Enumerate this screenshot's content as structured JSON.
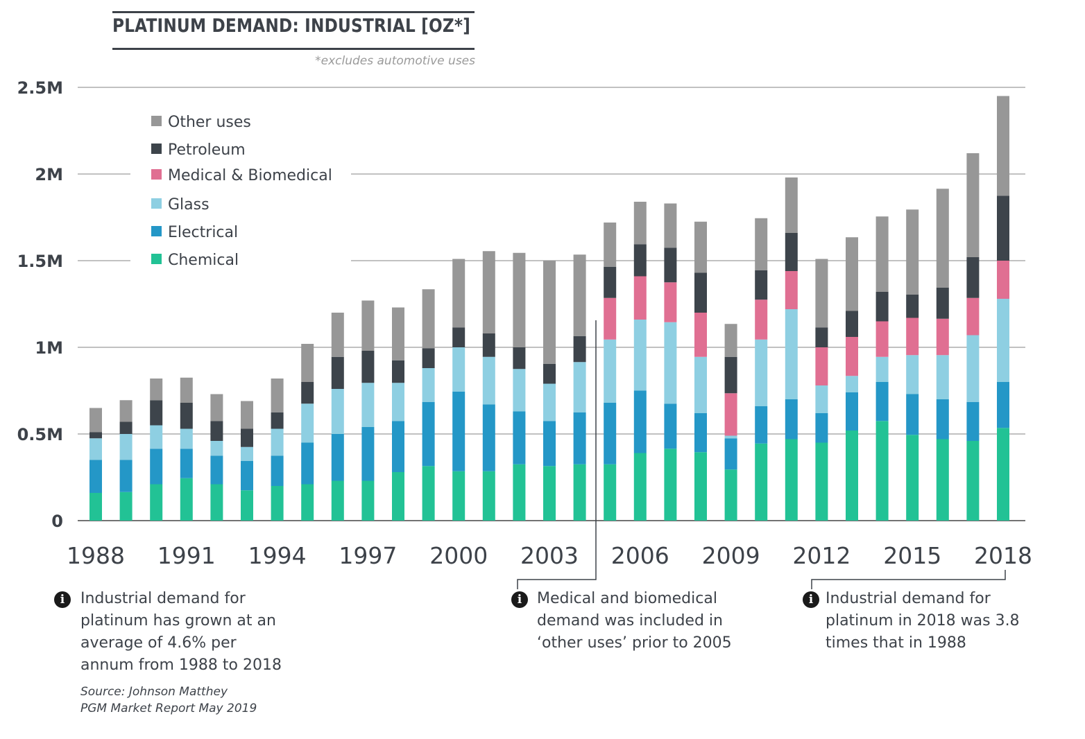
{
  "header": {
    "title": "PLATINUM DEMAND: INDUSTRIAL [OZ*]",
    "subtitle": "*excludes automotive uses"
  },
  "chart_data": {
    "type": "bar",
    "stacked": true,
    "title": "PLATINUM DEMAND: INDUSTRIAL [OZ*]",
    "subtitle": "*excludes automotive uses",
    "xlabel": "",
    "ylabel": "",
    "ylim": [
      0,
      2500000
    ],
    "yticks": [
      0,
      500000,
      1000000,
      1500000,
      2000000,
      2500000
    ],
    "ytick_labels": [
      "0",
      "0.5M",
      "1M",
      "1.5M",
      "2M",
      "2.5M"
    ],
    "xtick_labels": [
      "1988",
      "1991",
      "1994",
      "1997",
      "2000",
      "2003",
      "2006",
      "2009",
      "2012",
      "2015",
      "2018"
    ],
    "grid": true,
    "legend_position": "top-left",
    "categories": [
      "1988",
      "1989",
      "1990",
      "1991",
      "1992",
      "1993",
      "1994",
      "1995",
      "1996",
      "1997",
      "1998",
      "1999",
      "2000",
      "2001",
      "2002",
      "2003",
      "2004",
      "2005",
      "2006",
      "2007",
      "2008",
      "2009",
      "2010",
      "2011",
      "2012",
      "2013",
      "2014",
      "2015",
      "2016",
      "2017",
      "2018"
    ],
    "series": [
      {
        "name": "Chemical",
        "color": "#22c295",
        "values": [
          160000,
          165000,
          210000,
          245000,
          210000,
          175000,
          200000,
          210000,
          230000,
          230000,
          280000,
          315000,
          285000,
          285000,
          325000,
          315000,
          325000,
          325000,
          390000,
          415000,
          395000,
          295000,
          445000,
          470000,
          450000,
          520000,
          575000,
          495000,
          470000,
          460000,
          535000
        ]
      },
      {
        "name": "Electrical",
        "color": "#2497c7",
        "values": [
          190000,
          185000,
          205000,
          170000,
          165000,
          170000,
          175000,
          240000,
          270000,
          310000,
          295000,
          370000,
          460000,
          385000,
          305000,
          260000,
          300000,
          355000,
          360000,
          260000,
          225000,
          180000,
          215000,
          230000,
          170000,
          220000,
          225000,
          235000,
          230000,
          225000,
          265000
        ]
      },
      {
        "name": "Glass",
        "color": "#8ecfe2",
        "values": [
          125000,
          150000,
          135000,
          115000,
          85000,
          80000,
          155000,
          225000,
          260000,
          255000,
          220000,
          195000,
          255000,
          275000,
          245000,
          215000,
          290000,
          365000,
          410000,
          470000,
          325000,
          15000,
          385000,
          520000,
          160000,
          95000,
          145000,
          225000,
          255000,
          385000,
          480000
        ]
      },
      {
        "name": "Medical & Biomedical",
        "color": "#e06f92",
        "values": [
          0,
          0,
          0,
          0,
          0,
          0,
          0,
          0,
          0,
          0,
          0,
          0,
          0,
          0,
          0,
          0,
          0,
          240000,
          250000,
          230000,
          255000,
          245000,
          230000,
          220000,
          220000,
          225000,
          205000,
          215000,
          210000,
          215000,
          220000
        ]
      },
      {
        "name": "Petroleum",
        "color": "#3d444b",
        "values": [
          35000,
          70000,
          145000,
          150000,
          115000,
          105000,
          95000,
          125000,
          185000,
          185000,
          130000,
          115000,
          115000,
          135000,
          125000,
          115000,
          150000,
          180000,
          185000,
          200000,
          230000,
          210000,
          170000,
          220000,
          115000,
          150000,
          170000,
          135000,
          180000,
          235000,
          375000
        ]
      },
      {
        "name": "Other uses",
        "color": "#979797",
        "values": [
          140000,
          125000,
          125000,
          145000,
          155000,
          160000,
          195000,
          220000,
          255000,
          290000,
          305000,
          340000,
          395000,
          475000,
          545000,
          595000,
          470000,
          255000,
          245000,
          255000,
          295000,
          190000,
          300000,
          320000,
          395000,
          425000,
          435000,
          490000,
          570000,
          600000,
          575000
        ]
      }
    ]
  },
  "legend": [
    {
      "label": "Other uses",
      "color": "#979797"
    },
    {
      "label": "Petroleum",
      "color": "#3d444b"
    },
    {
      "label": "Medical & Biomedical",
      "color": "#e06f92"
    },
    {
      "label": "Glass",
      "color": "#8ecfe2"
    },
    {
      "label": "Electrical",
      "color": "#2497c7"
    },
    {
      "label": "Chemical",
      "color": "#22c295"
    }
  ],
  "notes": [
    {
      "icon": "info-icon",
      "text": "Industrial demand for\nplatinum has grown at an\naverage of 4.6% per\nannum from 1988 to 2018"
    },
    {
      "icon": "info-icon",
      "text": "Medical and biomedical\ndemand was included in\n‘other uses’ prior to 2005"
    },
    {
      "icon": "info-icon",
      "text": "Industrial demand for\nplatinum in 2018 was 3.8\ntimes that in 1988"
    }
  ],
  "source": "Source: Johnson Matthey\nPGM Market Report May 2019"
}
